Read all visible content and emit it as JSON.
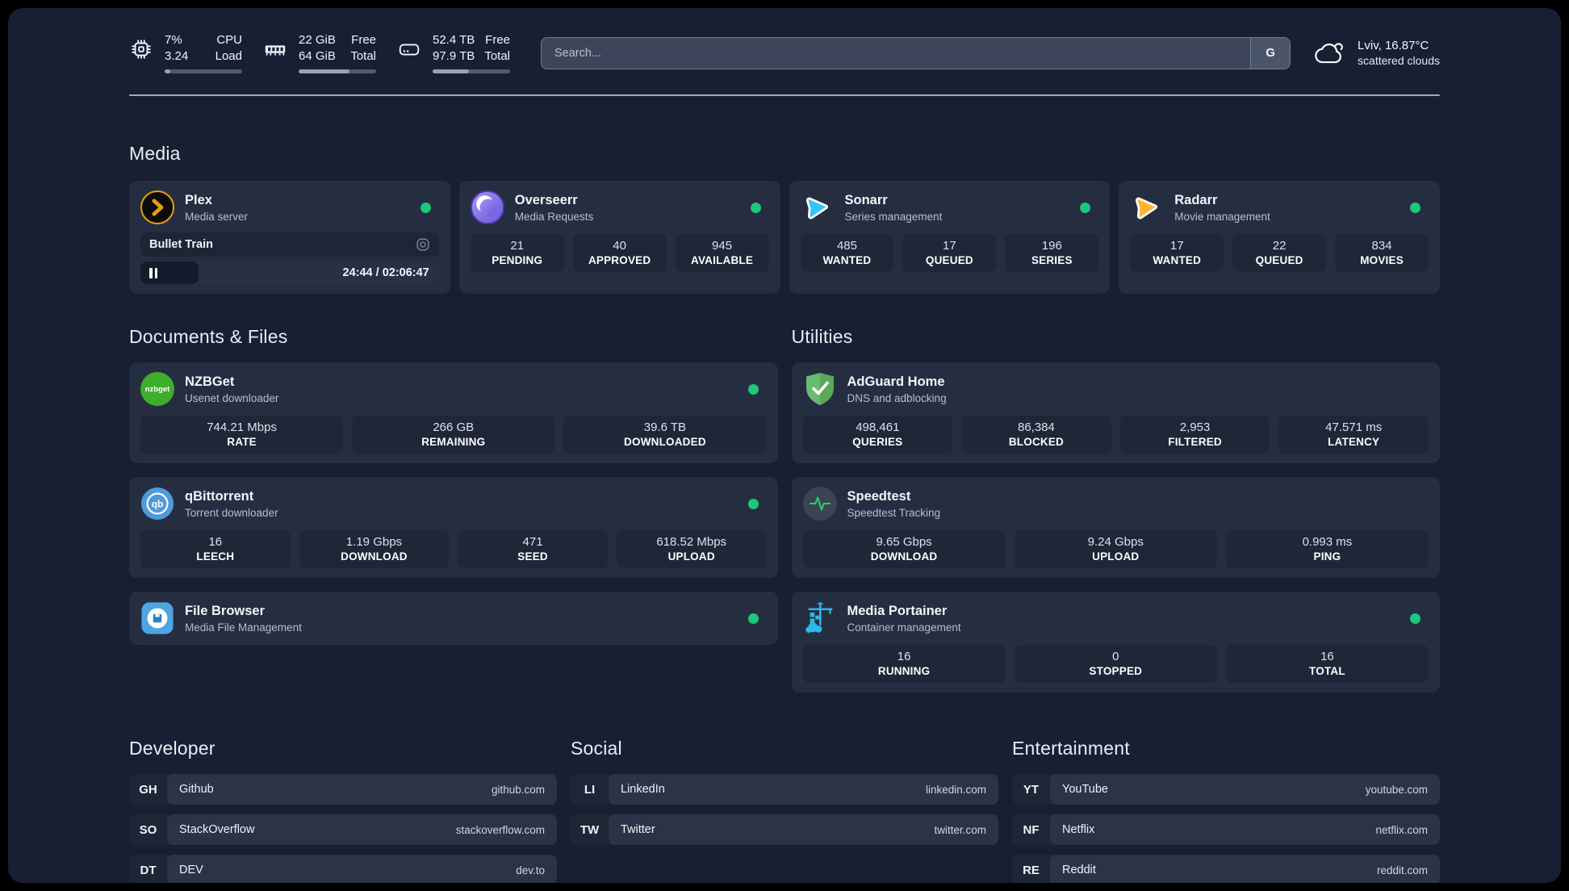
{
  "system_bar": {
    "cpu": {
      "icon": "cpu-chip-icon",
      "value_primary": "7%",
      "value_secondary": "3.24",
      "label_primary": "CPU",
      "label_secondary": "Load",
      "usage_pct": 7
    },
    "memory": {
      "icon": "ram-icon",
      "value_primary": "22 GiB",
      "value_secondary": "64 GiB",
      "label_primary": "Free",
      "label_secondary": "Total",
      "usage_pct": 66
    },
    "storage": {
      "icon": "hard-drive-icon",
      "value_primary": "52.4 TB",
      "value_secondary": "97.9 TB",
      "label_primary": "Free",
      "label_secondary": "Total",
      "usage_pct": 47
    },
    "search": {
      "placeholder": "Search...",
      "engine_button_label": "G"
    },
    "weather": {
      "icon": "scattered-clouds-icon",
      "location_temperature": "Lviv, 16.87°C",
      "condition": "scattered clouds"
    }
  },
  "media_section": {
    "title": "Media",
    "plex": {
      "icon": "plex-icon",
      "name": "Plex",
      "description": "Media server",
      "status": "online",
      "now_playing": {
        "title": "Bullet Train",
        "state": "paused",
        "time": "24:44 / 02:06:47",
        "progress_pct": 19.5
      }
    },
    "overseerr": {
      "icon": "overseerr-icon",
      "name": "Overseerr",
      "description": "Media Requests",
      "status": "online",
      "stats": [
        {
          "value": "21",
          "label": "PENDING"
        },
        {
          "value": "40",
          "label": "APPROVED"
        },
        {
          "value": "945",
          "label": "AVAILABLE"
        }
      ]
    },
    "sonarr": {
      "icon": "sonarr-icon",
      "name": "Sonarr",
      "description": "Series management",
      "status": "online",
      "stats": [
        {
          "value": "485",
          "label": "WANTED"
        },
        {
          "value": "17",
          "label": "QUEUED"
        },
        {
          "value": "196",
          "label": "SERIES"
        }
      ]
    },
    "radarr": {
      "icon": "radarr-icon",
      "name": "Radarr",
      "description": "Movie management",
      "status": "online",
      "stats": [
        {
          "value": "17",
          "label": "WANTED"
        },
        {
          "value": "22",
          "label": "QUEUED"
        },
        {
          "value": "834",
          "label": "MOVIES"
        }
      ]
    }
  },
  "documents_section": {
    "title": "Documents & Files",
    "nzbget": {
      "icon": "nzbget-icon",
      "name": "NZBGet",
      "description": "Usenet downloader",
      "status": "online",
      "stats": [
        {
          "value": "744.21 Mbps",
          "label": "RATE"
        },
        {
          "value": "266 GB",
          "label": "REMAINING"
        },
        {
          "value": "39.6 TB",
          "label": "DOWNLOADED"
        }
      ]
    },
    "qbittorrent": {
      "icon": "qbittorrent-icon",
      "name": "qBittorrent",
      "description": "Torrent downloader",
      "status": "online",
      "stats": [
        {
          "value": "16",
          "label": "LEECH"
        },
        {
          "value": "1.19 Gbps",
          "label": "DOWNLOAD"
        },
        {
          "value": "471",
          "label": "SEED"
        },
        {
          "value": "618.52 Mbps",
          "label": "UPLOAD"
        }
      ]
    },
    "filebrowser": {
      "icon": "filebrowser-icon",
      "name": "File Browser",
      "description": "Media File Management",
      "status": "online"
    }
  },
  "utilities_section": {
    "title": "Utilities",
    "adguard": {
      "icon": "adguard-icon",
      "name": "AdGuard Home",
      "description": "DNS and adblocking",
      "stats": [
        {
          "value": "498,461",
          "label": "QUERIES"
        },
        {
          "value": "86,384",
          "label": "BLOCKED"
        },
        {
          "value": "2,953",
          "label": "FILTERED"
        },
        {
          "value": "47.571 ms",
          "label": "LATENCY"
        }
      ]
    },
    "speedtest": {
      "icon": "speedtest-icon",
      "name": "Speedtest",
      "description": "Speedtest Tracking",
      "stats": [
        {
          "value": "9.65 Gbps",
          "label": "DOWNLOAD"
        },
        {
          "value": "9.24 Gbps",
          "label": "UPLOAD"
        },
        {
          "value": "0.993 ms",
          "label": "PING"
        }
      ]
    },
    "portainer": {
      "icon": "portainer-icon",
      "name": "Media Portainer",
      "description": "Container management",
      "status": "online",
      "stats": [
        {
          "value": "16",
          "label": "RUNNING"
        },
        {
          "value": "0",
          "label": "STOPPED"
        },
        {
          "value": "16",
          "label": "TOTAL"
        }
      ]
    }
  },
  "bookmark_sections": [
    {
      "title": "Developer",
      "links": [
        {
          "abbr": "GH",
          "name": "Github",
          "url": "github.com"
        },
        {
          "abbr": "SO",
          "name": "StackOverflow",
          "url": "stackoverflow.com"
        },
        {
          "abbr": "DT",
          "name": "DEV",
          "url": "dev.to"
        }
      ]
    },
    {
      "title": "Social",
      "links": [
        {
          "abbr": "LI",
          "name": "LinkedIn",
          "url": "linkedin.com"
        },
        {
          "abbr": "TW",
          "name": "Twitter",
          "url": "twitter.com"
        }
      ]
    },
    {
      "title": "Entertainment",
      "links": [
        {
          "abbr": "YT",
          "name": "YouTube",
          "url": "youtube.com"
        },
        {
          "abbr": "NF",
          "name": "Netflix",
          "url": "netflix.com"
        },
        {
          "abbr": "RE",
          "name": "Reddit",
          "url": "reddit.com"
        }
      ]
    }
  ],
  "colors": {
    "status_online": "#1dc77c",
    "background": "#191f32",
    "card": "#252e41",
    "plex_accent": "#e5a00d"
  }
}
